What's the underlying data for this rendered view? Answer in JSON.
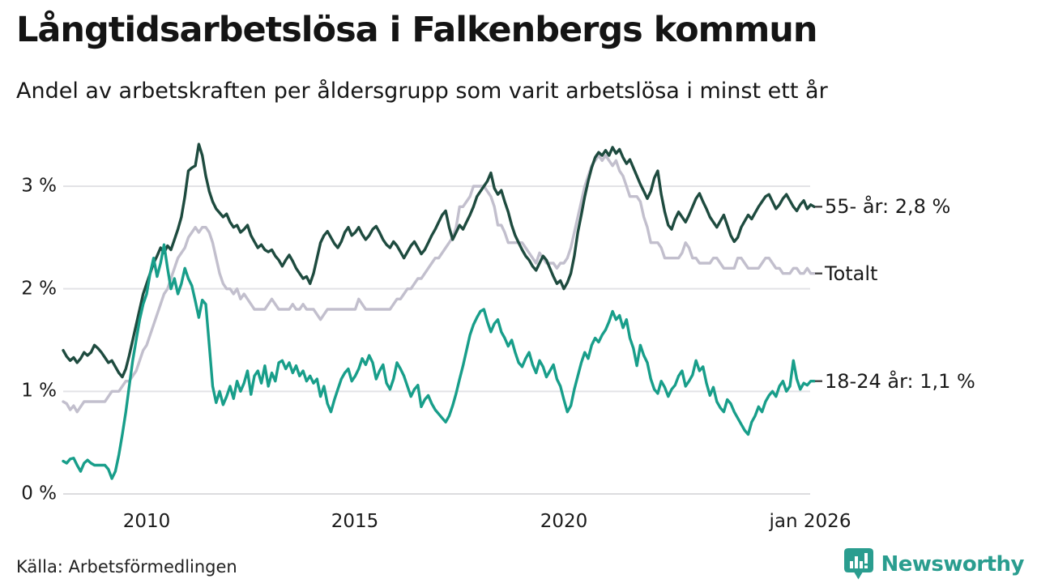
{
  "header": {
    "title": "Långtidsarbetslösa i Falkenbergs kommun",
    "subtitle": "Andel av arbetskraften per åldersgrupp som varit arbetslösa i minst ett år"
  },
  "axes": {
    "y_ticks": [
      "3 %",
      "2 %",
      "1 %",
      "0 %"
    ],
    "x_ticks": [
      "2010",
      "2015",
      "2020",
      "jan 2026"
    ]
  },
  "footer": {
    "source": "Källa: Arbetsförmedlingen",
    "brand": "Newsworthy",
    "brand_color": "#2a9d8f"
  },
  "chart_data": {
    "type": "line",
    "title": "Långtidsarbetslösa i Falkenbergs kommun",
    "subtitle": "Andel av arbetskraften per åldersgrupp som varit arbetslösa i minst ett år",
    "unit": "% av arbetskraften",
    "x_start_year": 2008,
    "x_end_year": 2026,
    "x_resolution": "monthly",
    "ylim": [
      0,
      3.5
    ],
    "y_tick_values": [
      0,
      1,
      2,
      3
    ],
    "x_tick_values": [
      2010,
      2015,
      2020,
      2026
    ],
    "x_tick_labels": [
      "2010",
      "2015",
      "2020",
      "jan 2026"
    ],
    "grid": "horizontal",
    "legend_position": "right-of-line-ends",
    "series": [
      {
        "name": "55- år",
        "label": "55- år: 2,8 %",
        "end_value": 2.8,
        "color": "#1e4b3f",
        "values": [
          1.4,
          1.34,
          1.3,
          1.33,
          1.28,
          1.32,
          1.38,
          1.35,
          1.38,
          1.45,
          1.42,
          1.38,
          1.33,
          1.28,
          1.3,
          1.24,
          1.18,
          1.14,
          1.22,
          1.35,
          1.5,
          1.65,
          1.8,
          1.95,
          2.05,
          2.15,
          2.25,
          2.32,
          2.4,
          2.35,
          2.42,
          2.38,
          2.48,
          2.58,
          2.7,
          2.9,
          3.15,
          3.18,
          3.2,
          3.41,
          3.3,
          3.1,
          2.95,
          2.85,
          2.78,
          2.74,
          2.7,
          2.73,
          2.65,
          2.6,
          2.62,
          2.55,
          2.58,
          2.62,
          2.52,
          2.46,
          2.4,
          2.43,
          2.38,
          2.36,
          2.38,
          2.32,
          2.28,
          2.22,
          2.28,
          2.33,
          2.27,
          2.2,
          2.15,
          2.1,
          2.12,
          2.05,
          2.15,
          2.3,
          2.45,
          2.52,
          2.56,
          2.5,
          2.44,
          2.4,
          2.46,
          2.55,
          2.6,
          2.52,
          2.55,
          2.6,
          2.53,
          2.48,
          2.52,
          2.58,
          2.61,
          2.55,
          2.48,
          2.43,
          2.4,
          2.46,
          2.42,
          2.36,
          2.3,
          2.36,
          2.42,
          2.46,
          2.4,
          2.34,
          2.38,
          2.45,
          2.52,
          2.58,
          2.65,
          2.72,
          2.76,
          2.6,
          2.48,
          2.55,
          2.62,
          2.58,
          2.65,
          2.72,
          2.8,
          2.9,
          2.95,
          3.0,
          3.05,
          3.13,
          2.98,
          2.92,
          2.96,
          2.85,
          2.75,
          2.62,
          2.52,
          2.45,
          2.38,
          2.32,
          2.28,
          2.22,
          2.18,
          2.25,
          2.32,
          2.28,
          2.2,
          2.12,
          2.05,
          2.08,
          2.0,
          2.06,
          2.15,
          2.32,
          2.55,
          2.72,
          2.9,
          3.05,
          3.18,
          3.28,
          3.33,
          3.3,
          3.35,
          3.3,
          3.38,
          3.32,
          3.36,
          3.28,
          3.22,
          3.26,
          3.18,
          3.1,
          3.02,
          2.95,
          2.88,
          2.95,
          3.08,
          3.15,
          2.92,
          2.75,
          2.62,
          2.58,
          2.68,
          2.75,
          2.7,
          2.65,
          2.72,
          2.8,
          2.88,
          2.93,
          2.85,
          2.78,
          2.7,
          2.65,
          2.6,
          2.66,
          2.72,
          2.62,
          2.52,
          2.46,
          2.5,
          2.6,
          2.66,
          2.72,
          2.68,
          2.74,
          2.8,
          2.85,
          2.9,
          2.92,
          2.85,
          2.78,
          2.82,
          2.88,
          2.92,
          2.86,
          2.8,
          2.76,
          2.82,
          2.86,
          2.78,
          2.82,
          2.8
        ]
      },
      {
        "name": "Totalt",
        "label": "Totalt",
        "end_value": 2.15,
        "color": "#c2bfcd",
        "values": [
          0.9,
          0.88,
          0.82,
          0.86,
          0.8,
          0.85,
          0.9,
          0.9,
          0.9,
          0.9,
          0.9,
          0.9,
          0.9,
          0.95,
          1.0,
          1.0,
          1.0,
          1.05,
          1.1,
          1.1,
          1.15,
          1.2,
          1.3,
          1.4,
          1.45,
          1.55,
          1.65,
          1.75,
          1.85,
          1.95,
          2.0,
          2.1,
          2.2,
          2.3,
          2.35,
          2.4,
          2.5,
          2.55,
          2.6,
          2.55,
          2.6,
          2.6,
          2.55,
          2.45,
          2.3,
          2.15,
          2.05,
          2.0,
          2.0,
          1.95,
          2.0,
          1.9,
          1.95,
          1.9,
          1.85,
          1.8,
          1.8,
          1.8,
          1.8,
          1.85,
          1.9,
          1.85,
          1.8,
          1.8,
          1.8,
          1.8,
          1.85,
          1.8,
          1.8,
          1.85,
          1.8,
          1.8,
          1.8,
          1.75,
          1.7,
          1.75,
          1.8,
          1.8,
          1.8,
          1.8,
          1.8,
          1.8,
          1.8,
          1.8,
          1.8,
          1.9,
          1.85,
          1.8,
          1.8,
          1.8,
          1.8,
          1.8,
          1.8,
          1.8,
          1.8,
          1.85,
          1.9,
          1.9,
          1.95,
          2.0,
          2.0,
          2.05,
          2.1,
          2.1,
          2.15,
          2.2,
          2.25,
          2.3,
          2.3,
          2.35,
          2.4,
          2.45,
          2.5,
          2.6,
          2.8,
          2.8,
          2.85,
          2.9,
          3.0,
          3.0,
          3.0,
          3.0,
          2.95,
          2.9,
          2.8,
          2.62,
          2.62,
          2.55,
          2.45,
          2.45,
          2.45,
          2.45,
          2.45,
          2.4,
          2.35,
          2.3,
          2.25,
          2.35,
          2.3,
          2.25,
          2.25,
          2.25,
          2.2,
          2.25,
          2.25,
          2.3,
          2.4,
          2.55,
          2.7,
          2.85,
          3.0,
          3.1,
          3.2,
          3.25,
          3.3,
          3.25,
          3.3,
          3.25,
          3.2,
          3.25,
          3.15,
          3.1,
          3.0,
          2.9,
          2.9,
          2.9,
          2.85,
          2.7,
          2.6,
          2.45,
          2.45,
          2.45,
          2.4,
          2.3,
          2.3,
          2.3,
          2.3,
          2.3,
          2.35,
          2.45,
          2.4,
          2.3,
          2.3,
          2.25,
          2.25,
          2.25,
          2.25,
          2.3,
          2.3,
          2.25,
          2.2,
          2.2,
          2.2,
          2.2,
          2.3,
          2.3,
          2.25,
          2.2,
          2.2,
          2.2,
          2.2,
          2.25,
          2.3,
          2.3,
          2.25,
          2.2,
          2.2,
          2.15,
          2.15,
          2.15,
          2.2,
          2.2,
          2.15,
          2.15,
          2.2,
          2.15,
          2.15
        ]
      },
      {
        "name": "18-24 år",
        "label": "18-24 år: 1,1 %",
        "end_value": 1.1,
        "color": "#189e8a",
        "values": [
          0.32,
          0.3,
          0.34,
          0.35,
          0.28,
          0.22,
          0.3,
          0.33,
          0.3,
          0.28,
          0.28,
          0.28,
          0.28,
          0.24,
          0.15,
          0.22,
          0.38,
          0.58,
          0.8,
          1.05,
          1.3,
          1.5,
          1.7,
          1.85,
          1.95,
          2.15,
          2.3,
          2.12,
          2.25,
          2.43,
          2.2,
          2.0,
          2.1,
          1.95,
          2.05,
          2.2,
          2.1,
          2.03,
          1.88,
          1.72,
          1.89,
          1.85,
          1.45,
          1.05,
          0.89,
          1.0,
          0.87,
          0.95,
          1.05,
          0.93,
          1.1,
          1.0,
          1.08,
          1.2,
          0.97,
          1.15,
          1.2,
          1.08,
          1.25,
          1.05,
          1.18,
          1.1,
          1.28,
          1.3,
          1.22,
          1.28,
          1.18,
          1.25,
          1.15,
          1.2,
          1.1,
          1.15,
          1.08,
          1.12,
          0.95,
          1.05,
          0.88,
          0.8,
          0.92,
          1.02,
          1.12,
          1.18,
          1.22,
          1.1,
          1.15,
          1.22,
          1.32,
          1.26,
          1.35,
          1.28,
          1.12,
          1.2,
          1.26,
          1.08,
          1.02,
          1.12,
          1.28,
          1.22,
          1.15,
          1.05,
          0.95,
          1.02,
          1.06,
          0.85,
          0.92,
          0.96,
          0.88,
          0.82,
          0.78,
          0.74,
          0.7,
          0.76,
          0.86,
          0.98,
          1.12,
          1.25,
          1.4,
          1.55,
          1.65,
          1.72,
          1.78,
          1.8,
          1.68,
          1.58,
          1.66,
          1.7,
          1.58,
          1.52,
          1.44,
          1.5,
          1.38,
          1.28,
          1.24,
          1.32,
          1.38,
          1.26,
          1.18,
          1.3,
          1.24,
          1.14,
          1.2,
          1.26,
          1.12,
          1.05,
          0.92,
          0.8,
          0.86,
          1.02,
          1.15,
          1.28,
          1.38,
          1.32,
          1.45,
          1.52,
          1.48,
          1.55,
          1.6,
          1.68,
          1.78,
          1.7,
          1.74,
          1.62,
          1.7,
          1.52,
          1.42,
          1.25,
          1.45,
          1.35,
          1.28,
          1.12,
          1.02,
          0.98,
          1.1,
          1.04,
          0.95,
          1.02,
          1.06,
          1.15,
          1.2,
          1.05,
          1.1,
          1.16,
          1.3,
          1.2,
          1.24,
          1.08,
          0.96,
          1.04,
          0.9,
          0.84,
          0.8,
          0.92,
          0.88,
          0.8,
          0.74,
          0.68,
          0.62,
          0.58,
          0.7,
          0.76,
          0.85,
          0.8,
          0.9,
          0.96,
          1.0,
          0.95,
          1.05,
          1.1,
          1.0,
          1.05,
          1.3,
          1.12,
          1.02,
          1.08,
          1.06,
          1.1,
          1.1
        ]
      }
    ]
  }
}
